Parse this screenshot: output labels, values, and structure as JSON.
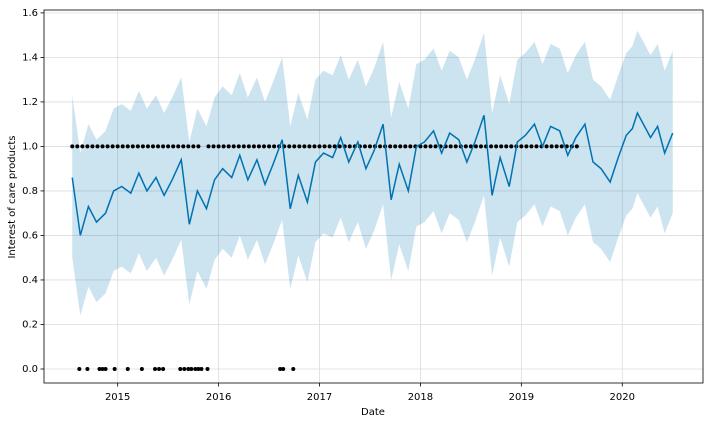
{
  "chart_data": {
    "type": "line",
    "xlabel": "Date",
    "ylabel": "Interest of care products",
    "xlim": [
      2014.27,
      2020.8
    ],
    "ylim": [
      -0.063,
      1.613
    ],
    "xticks": [
      2015,
      2016,
      2017,
      2018,
      2019,
      2020
    ],
    "yticks": [
      {
        "value": 0,
        "label": "0.0"
      },
      {
        "value": 0.2,
        "label": "0.2"
      },
      {
        "value": 0.4,
        "label": "0.4"
      },
      {
        "value": 0.6,
        "label": "0.6"
      },
      {
        "value": 0.8,
        "label": "0.8"
      },
      {
        "value": 1.0,
        "label": "1.0"
      },
      {
        "value": 1.2,
        "label": "1.2"
      },
      {
        "value": 1.4,
        "label": "1.4"
      },
      {
        "value": 1.6,
        "label": "1.6"
      }
    ],
    "grid": true,
    "line_color": "#0072B2",
    "band_color": "#0072B2",
    "point_color": "#000000",
    "x": [
      2014.55,
      2014.63,
      2014.71,
      2014.79,
      2014.88,
      2014.96,
      2015.04,
      2015.13,
      2015.21,
      2015.29,
      2015.38,
      2015.46,
      2015.54,
      2015.63,
      2015.71,
      2015.79,
      2015.88,
      2015.96,
      2016.04,
      2016.13,
      2016.21,
      2016.29,
      2016.38,
      2016.46,
      2016.54,
      2016.63,
      2016.71,
      2016.79,
      2016.88,
      2016.96,
      2017.04,
      2017.13,
      2017.21,
      2017.29,
      2017.38,
      2017.46,
      2017.54,
      2017.63,
      2017.71,
      2017.79,
      2017.88,
      2017.96,
      2018.04,
      2018.13,
      2018.21,
      2018.29,
      2018.38,
      2018.46,
      2018.54,
      2018.63,
      2018.71,
      2018.79,
      2018.88,
      2018.96,
      2019.04,
      2019.13,
      2019.21,
      2019.29,
      2019.38,
      2019.46,
      2019.54,
      2019.63,
      2019.71,
      2019.79,
      2019.88,
      2019.96,
      2020.04,
      2020.1,
      2020.15,
      2020.28,
      2020.35,
      2020.42,
      2020.5
    ],
    "yhat": [
      0.86,
      0.6,
      0.73,
      0.66,
      0.7,
      0.8,
      0.82,
      0.79,
      0.88,
      0.8,
      0.86,
      0.78,
      0.85,
      0.94,
      0.65,
      0.8,
      0.72,
      0.85,
      0.9,
      0.86,
      0.96,
      0.85,
      0.94,
      0.83,
      0.92,
      1.03,
      0.72,
      0.87,
      0.75,
      0.93,
      0.97,
      0.95,
      1.04,
      0.93,
      1.02,
      0.9,
      0.98,
      1.1,
      0.76,
      0.92,
      0.8,
      1.0,
      1.02,
      1.07,
      0.97,
      1.06,
      1.03,
      0.93,
      1.02,
      1.14,
      0.78,
      0.95,
      0.82,
      1.02,
      1.05,
      1.1,
      1.0,
      1.09,
      1.07,
      0.96,
      1.04,
      1.1,
      0.93,
      0.9,
      0.84,
      0.95,
      1.05,
      1.08,
      1.15,
      1.04,
      1.09,
      0.97,
      1.06
    ],
    "yhat_upper": [
      1.23,
      0.97,
      1.1,
      1.03,
      1.07,
      1.17,
      1.19,
      1.16,
      1.25,
      1.17,
      1.23,
      1.15,
      1.22,
      1.31,
      1.02,
      1.17,
      1.09,
      1.22,
      1.27,
      1.23,
      1.33,
      1.22,
      1.31,
      1.2,
      1.29,
      1.4,
      1.09,
      1.24,
      1.12,
      1.3,
      1.34,
      1.32,
      1.41,
      1.3,
      1.39,
      1.27,
      1.35,
      1.47,
      1.13,
      1.29,
      1.17,
      1.37,
      1.39,
      1.44,
      1.34,
      1.43,
      1.4,
      1.3,
      1.39,
      1.51,
      1.15,
      1.32,
      1.19,
      1.39,
      1.42,
      1.47,
      1.37,
      1.46,
      1.44,
      1.33,
      1.41,
      1.47,
      1.3,
      1.27,
      1.21,
      1.32,
      1.42,
      1.45,
      1.52,
      1.41,
      1.46,
      1.34,
      1.43
    ],
    "yhat_lower": [
      0.5,
      0.24,
      0.37,
      0.3,
      0.34,
      0.44,
      0.46,
      0.43,
      0.52,
      0.44,
      0.5,
      0.42,
      0.49,
      0.58,
      0.29,
      0.44,
      0.36,
      0.49,
      0.54,
      0.5,
      0.6,
      0.49,
      0.58,
      0.47,
      0.56,
      0.67,
      0.36,
      0.51,
      0.39,
      0.57,
      0.61,
      0.59,
      0.68,
      0.57,
      0.66,
      0.54,
      0.62,
      0.74,
      0.4,
      0.56,
      0.44,
      0.64,
      0.66,
      0.71,
      0.61,
      0.7,
      0.67,
      0.57,
      0.66,
      0.78,
      0.42,
      0.59,
      0.46,
      0.66,
      0.69,
      0.74,
      0.64,
      0.73,
      0.71,
      0.6,
      0.68,
      0.74,
      0.57,
      0.54,
      0.48,
      0.59,
      0.69,
      0.72,
      0.79,
      0.68,
      0.73,
      0.61,
      0.7
    ],
    "observed": {
      "x": [
        2014.55,
        2014.6,
        2014.65,
        2014.7,
        2014.75,
        2014.8,
        2014.85,
        2014.9,
        2014.95,
        2015,
        2015.05,
        2015.1,
        2015.15,
        2015.2,
        2015.25,
        2015.3,
        2015.35,
        2015.4,
        2015.45,
        2015.5,
        2015.55,
        2015.6,
        2015.65,
        2015.7,
        2015.75,
        2015.8,
        2015.9,
        2015.95,
        2016,
        2016.05,
        2016.1,
        2016.15,
        2016.2,
        2016.25,
        2016.3,
        2016.35,
        2016.4,
        2016.45,
        2016.5,
        2016.55,
        2016.6,
        2016.65,
        2016.7,
        2016.75,
        2016.8,
        2016.85,
        2016.9,
        2016.95,
        2017,
        2017.05,
        2017.1,
        2017.15,
        2017.2,
        2017.25,
        2017.3,
        2017.35,
        2017.4,
        2017.45,
        2017.5,
        2017.55,
        2017.6,
        2017.65,
        2017.7,
        2017.75,
        2017.8,
        2017.85,
        2017.9,
        2017.95,
        2018,
        2018.05,
        2018.1,
        2018.15,
        2018.2,
        2018.25,
        2018.3,
        2018.35,
        2018.4,
        2018.45,
        2018.5,
        2018.55,
        2018.6,
        2018.65,
        2018.7,
        2018.75,
        2018.8,
        2018.85,
        2018.9,
        2018.95,
        2019,
        2019.05,
        2019.1,
        2019.15,
        2019.2,
        2019.25,
        2019.3,
        2019.35,
        2019.4,
        2019.45,
        2019.5,
        2019.55,
        2014.62,
        2014.7,
        2014.82,
        2014.85,
        2014.88,
        2014.97,
        2015.1,
        2015.24,
        2015.37,
        2015.41,
        2015.45,
        2015.62,
        2015.66,
        2015.7,
        2015.73,
        2015.77,
        2015.8,
        2015.83,
        2015.89,
        2016.61,
        2016.64,
        2016.74
      ],
      "y": [
        1,
        1,
        1,
        1,
        1,
        1,
        1,
        1,
        1,
        1,
        1,
        1,
        1,
        1,
        1,
        1,
        1,
        1,
        1,
        1,
        1,
        1,
        1,
        1,
        1,
        1,
        1,
        1,
        1,
        1,
        1,
        1,
        1,
        1,
        1,
        1,
        1,
        1,
        1,
        1,
        1,
        1,
        1,
        1,
        1,
        1,
        1,
        1,
        1,
        1,
        1,
        1,
        1,
        1,
        1,
        1,
        1,
        1,
        1,
        1,
        1,
        1,
        1,
        1,
        1,
        1,
        1,
        1,
        1,
        1,
        1,
        1,
        1,
        1,
        1,
        1,
        1,
        1,
        1,
        1,
        1,
        1,
        1,
        1,
        1,
        1,
        1,
        1,
        1,
        1,
        1,
        1,
        1,
        1,
        1,
        1,
        1,
        1,
        1,
        1,
        0,
        0,
        0,
        0,
        0,
        0,
        0,
        0,
        0,
        0,
        0,
        0,
        0,
        0,
        0,
        0,
        0,
        0,
        0,
        0,
        0,
        0
      ]
    }
  }
}
